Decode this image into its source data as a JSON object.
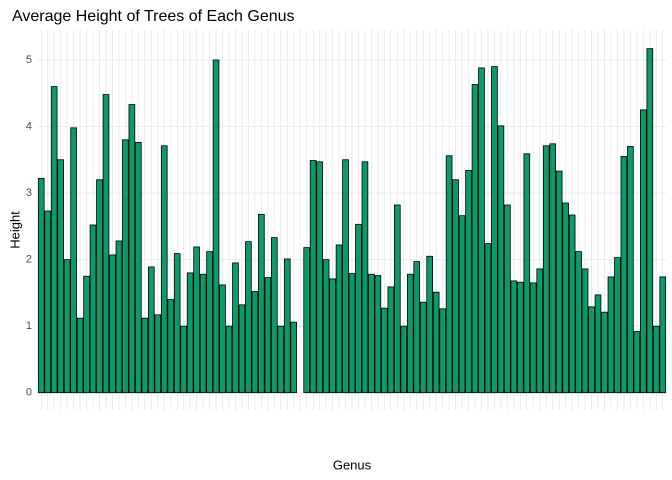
{
  "chart_data": {
    "type": "bar",
    "title": "Average Height of Trees of Each Genus",
    "x_label": "Genus",
    "y_label": "Height",
    "categories": [
      null,
      null,
      null,
      null,
      null,
      null,
      null,
      null,
      null,
      null,
      null,
      null,
      null,
      null,
      null,
      null,
      null,
      null,
      null,
      null,
      null,
      null,
      null,
      null,
      null,
      null,
      null,
      null,
      null,
      null,
      null,
      null,
      null,
      null,
      null,
      null,
      null,
      null,
      null,
      null,
      null,
      null,
      null,
      null,
      null,
      null,
      null,
      null,
      null,
      null,
      null,
      null,
      null,
      null,
      null,
      null,
      null,
      null,
      null,
      null,
      null,
      null,
      null,
      null,
      null,
      null,
      null,
      null,
      null,
      null,
      null,
      null,
      null,
      null,
      null,
      null,
      null,
      null,
      null,
      null,
      null,
      null,
      null,
      null,
      null,
      null,
      null,
      null,
      null,
      null,
      null,
      null,
      null,
      null,
      null,
      null,
      null
    ],
    "values": [
      3.22,
      2.73,
      4.6,
      3.5,
      2.0,
      3.98,
      1.12,
      1.75,
      2.52,
      3.2,
      4.48,
      2.07,
      2.28,
      3.8,
      4.33,
      3.76,
      1.12,
      1.89,
      1.17,
      3.71,
      1.4,
      2.09,
      1.0,
      1.8,
      2.19,
      1.78,
      2.12,
      5.0,
      1.62,
      1.0,
      1.95,
      1.32,
      2.27,
      1.52,
      2.68,
      1.73,
      2.33,
      1.0,
      2.01,
      1.06,
      0,
      2.18,
      3.49,
      3.47,
      2.0,
      1.71,
      2.22,
      3.5,
      1.79,
      2.53,
      3.47,
      1.78,
      1.76,
      1.27,
      1.59,
      2.82,
      1.0,
      1.78,
      1.97,
      1.36,
      2.05,
      1.51,
      1.26,
      3.56,
      3.2,
      2.66,
      3.34,
      4.63,
      4.88,
      2.24,
      4.9,
      4.01,
      2.82,
      1.68,
      1.66,
      3.59,
      1.65,
      1.86,
      3.71,
      3.74,
      3.33,
      2.85,
      2.67,
      2.12,
      1.86,
      1.29,
      1.47,
      1.21,
      1.74,
      2.03,
      3.55,
      3.7,
      0.92,
      4.25,
      5.17,
      1.0,
      1.74
    ],
    "color": "#0c9a6d",
    "ylim": [
      -0.26,
      5.45
    ],
    "yticks": [
      0,
      1,
      2,
      3,
      4,
      5
    ],
    "grid": true
  }
}
